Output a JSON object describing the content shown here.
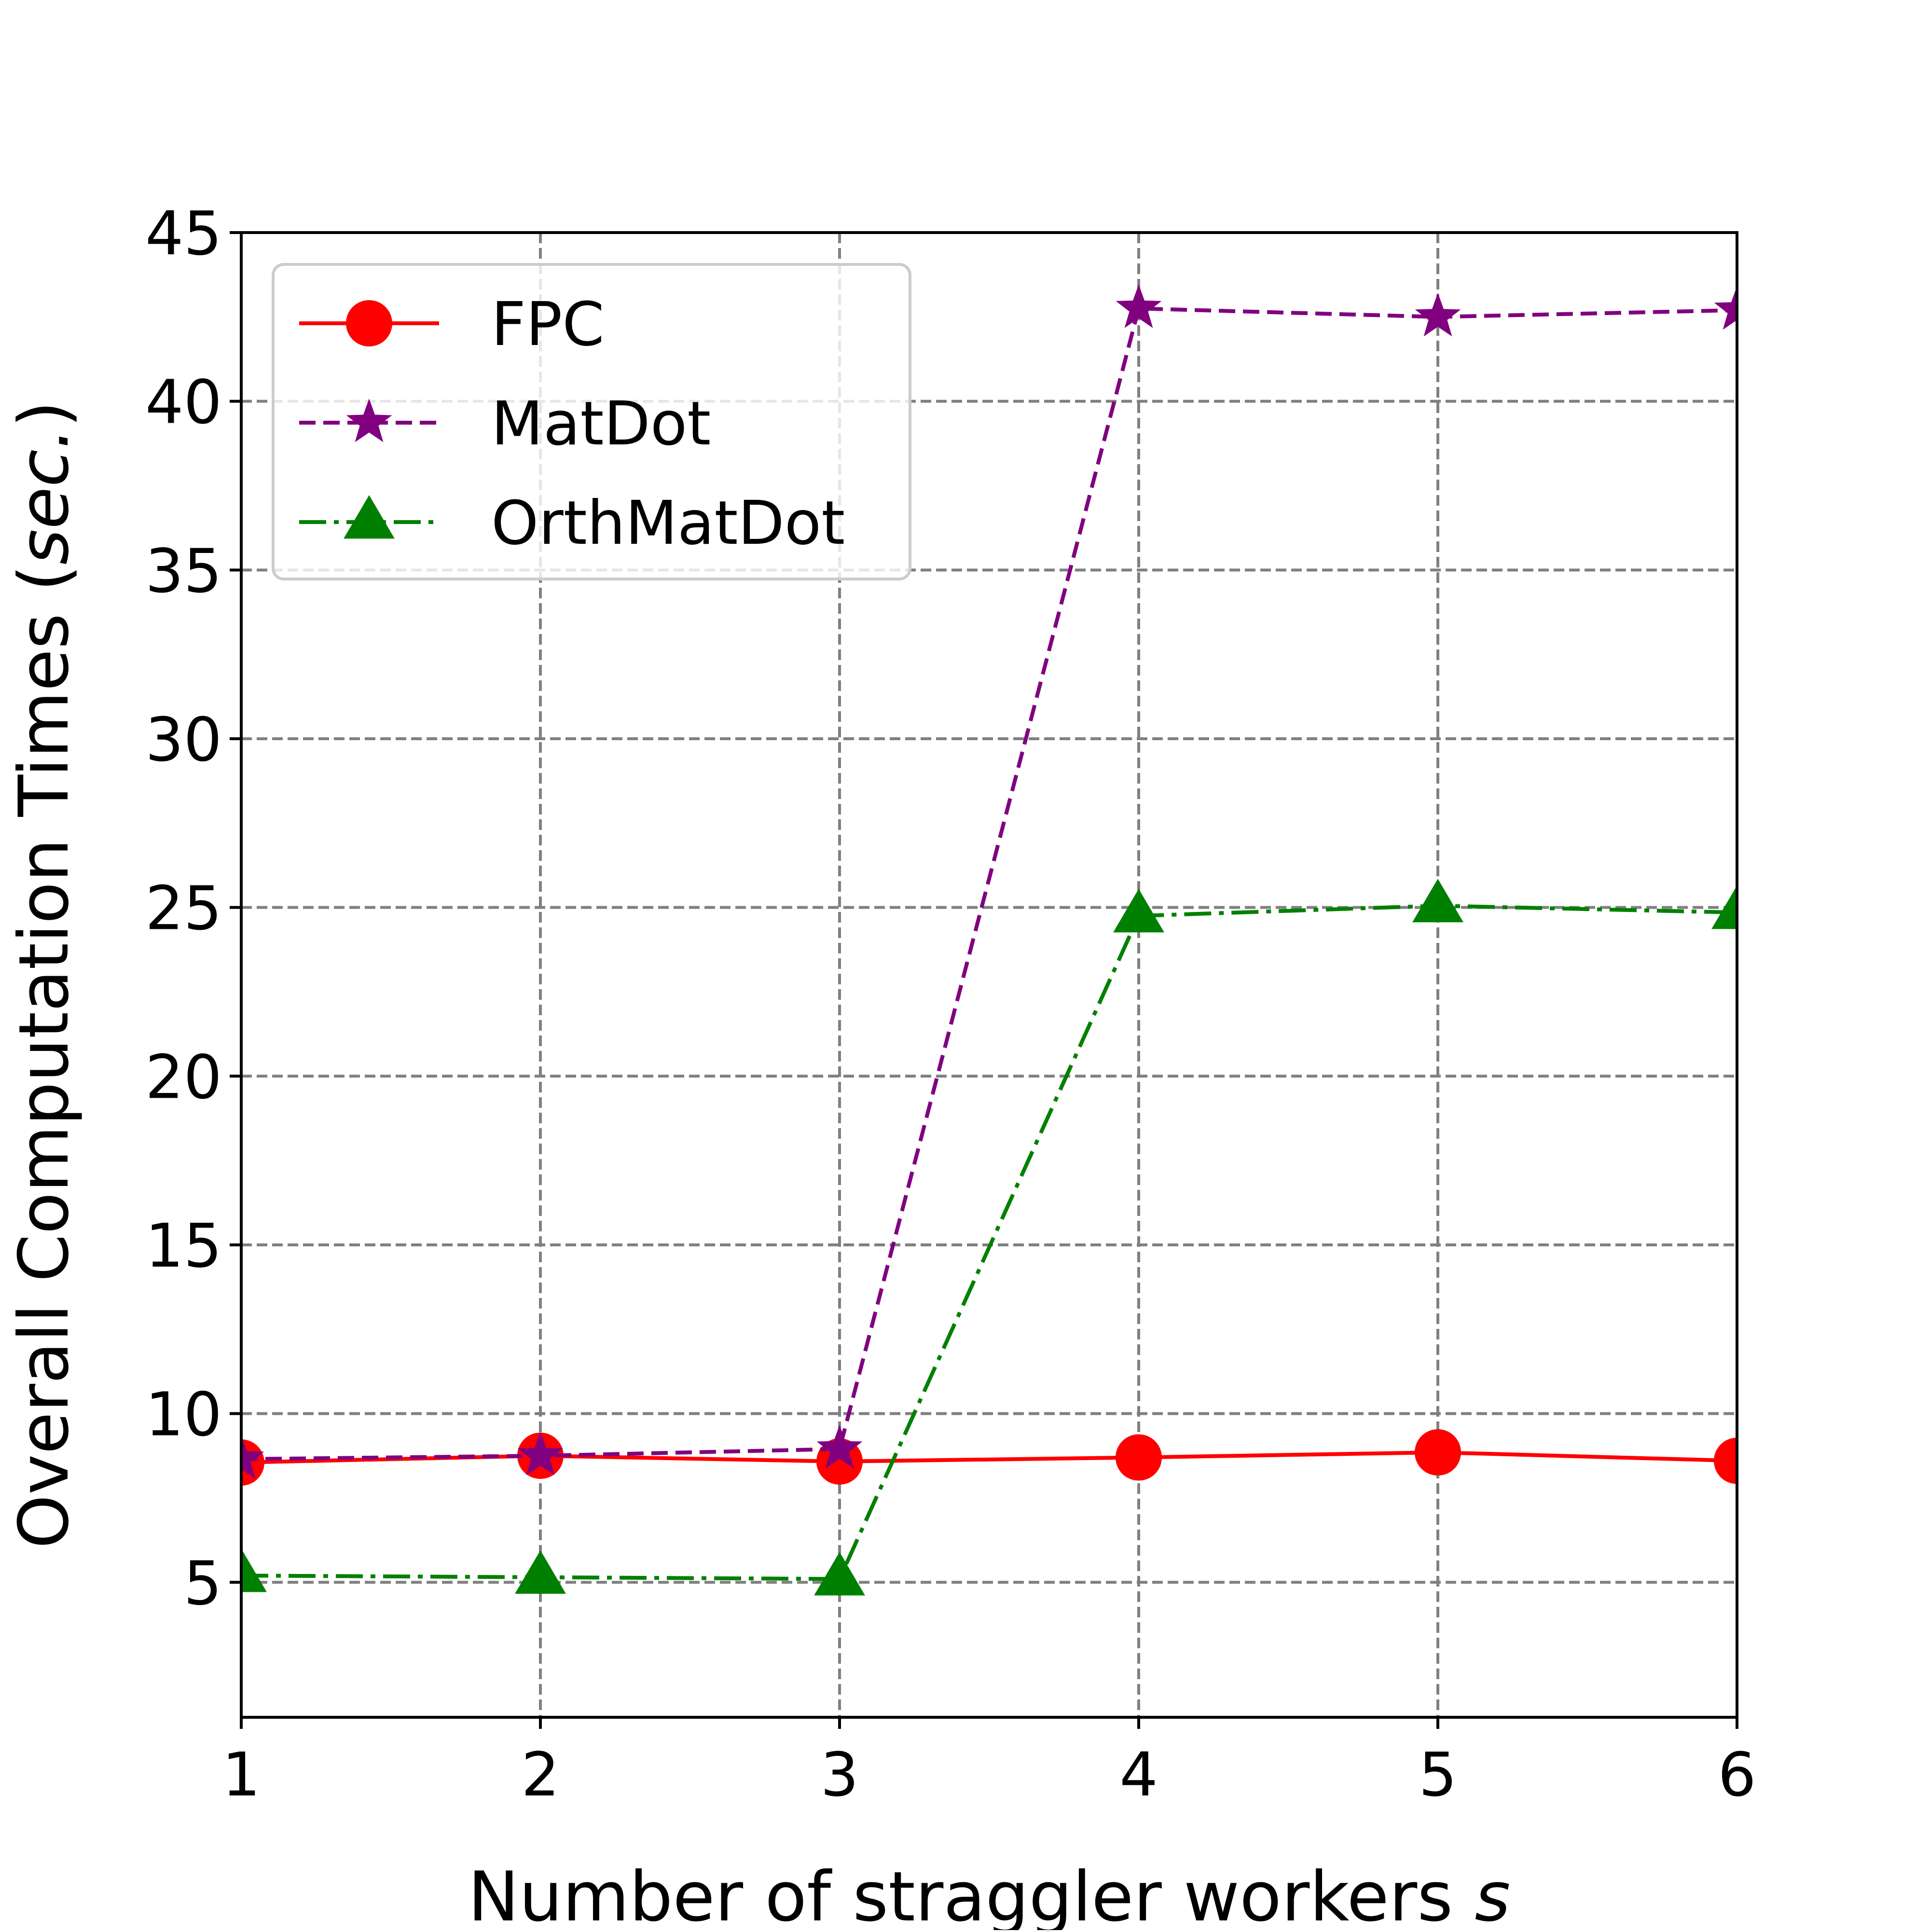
{
  "chart_data": {
    "type": "line",
    "xlabel": "Number of straggler workers",
    "xlabel_var": "s",
    "ylabel": "Overall  Computation Times (",
    "ylabel_var": "sec.",
    "ylabel_end": ")",
    "x": [
      1,
      2,
      3,
      4,
      5,
      6
    ],
    "xlim": [
      1,
      6
    ],
    "ylim": [
      1,
      45
    ],
    "xticks": [
      "1",
      "2",
      "3",
      "4",
      "5",
      "6"
    ],
    "yticks": [
      "5",
      "10",
      "15",
      "20",
      "25",
      "30",
      "35",
      "40",
      "45"
    ],
    "ytick_values": [
      5,
      10,
      15,
      20,
      25,
      30,
      35,
      40,
      45
    ],
    "grid": true,
    "legend_position": "top-left",
    "series": [
      {
        "name": "FPC",
        "values": [
          8.55,
          8.75,
          8.58,
          8.7,
          8.85,
          8.6
        ],
        "color": "#ff0000",
        "marker": "circle",
        "linestyle": "solid"
      },
      {
        "name": "MatDot",
        "values": [
          8.65,
          8.75,
          8.95,
          42.75,
          42.5,
          42.7
        ],
        "color": "#800080",
        "marker": "star",
        "linestyle": "dashed"
      },
      {
        "name": "OrthMatDot",
        "values": [
          5.2,
          5.15,
          5.1,
          24.75,
          25.05,
          24.85
        ],
        "color": "#008000",
        "marker": "triangle",
        "linestyle": "dashdot"
      }
    ]
  }
}
